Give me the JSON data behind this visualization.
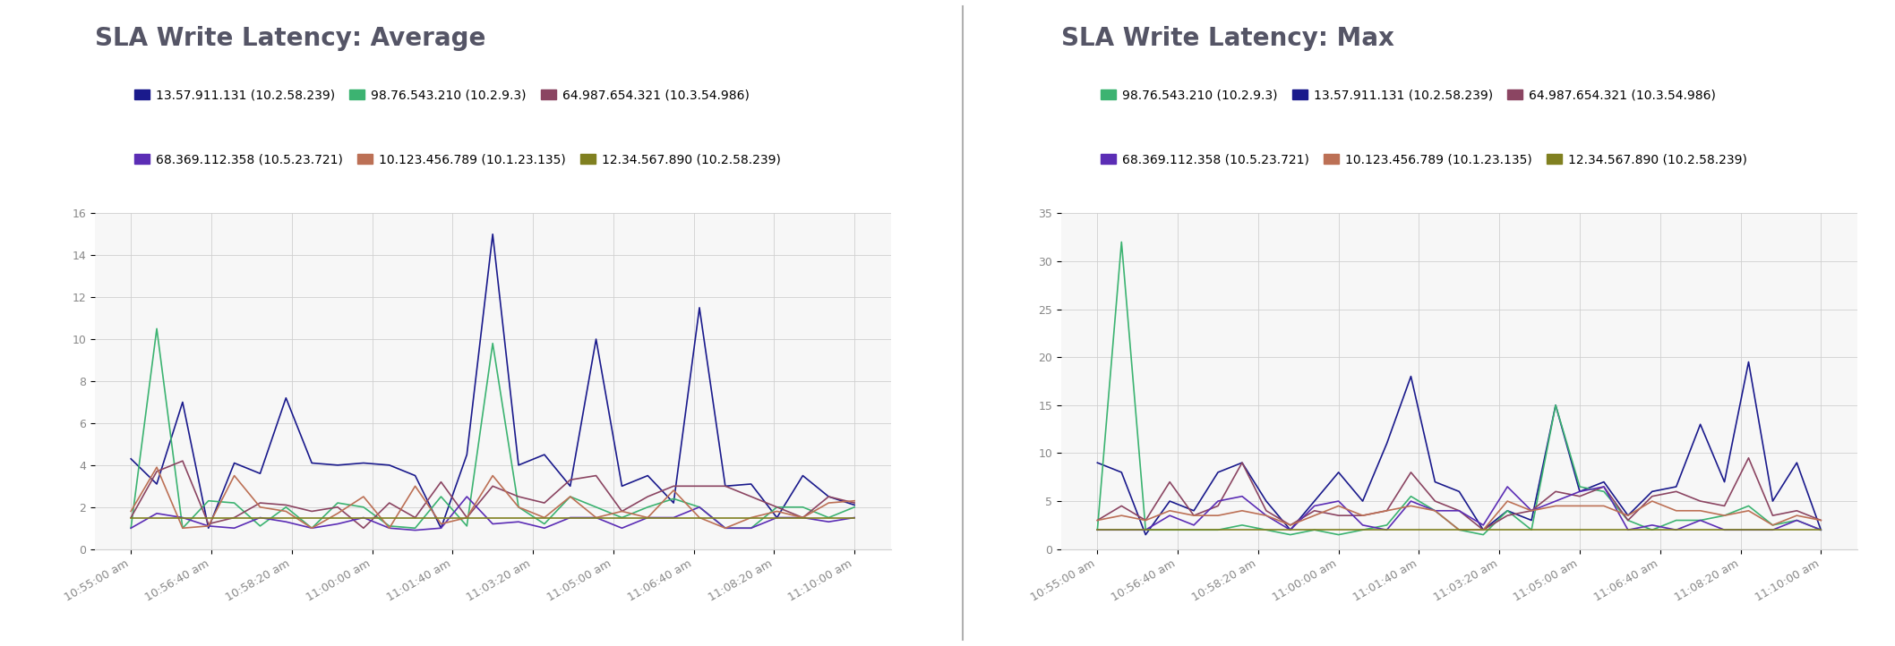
{
  "chart1_title": "SLA Write Latency: Average",
  "chart2_title": "SLA Write Latency: Max",
  "x_labels": [
    "10:55:00 am",
    "10:56:40 am",
    "10:58:20 am",
    "11:00:00 am",
    "11:01:40 am",
    "11:03:20 am",
    "11:05:00 am",
    "11:06:40 am",
    "11:08:20 am",
    "11:10:00 am"
  ],
  "chart1_ylim": [
    0,
    16
  ],
  "chart1_yticks": [
    0,
    2,
    4,
    6,
    8,
    10,
    12,
    14,
    16
  ],
  "chart2_ylim": [
    0,
    35
  ],
  "chart2_yticks": [
    0,
    5,
    10,
    15,
    20,
    25,
    30,
    35
  ],
  "series": [
    {
      "label": "13.57.911.131 (10.2.58.239)",
      "color": "#1a1a8c",
      "avg": [
        4.3,
        3.1,
        7.0,
        1.0,
        4.1,
        3.6,
        7.2,
        4.1,
        4.0,
        4.1,
        4.0,
        3.5,
        1.0,
        4.5,
        15.0,
        4.0,
        4.5,
        3.0,
        10.0,
        3.0,
        3.5,
        2.2,
        11.5,
        3.0,
        3.1,
        1.5,
        3.5,
        2.5,
        2.1
      ],
      "max": [
        9.0,
        8.0,
        1.5,
        5.0,
        4.0,
        8.0,
        9.0,
        5.0,
        2.0,
        5.0,
        8.0,
        5.0,
        11.0,
        18.0,
        7.0,
        6.0,
        2.0,
        4.0,
        3.0,
        15.0,
        6.0,
        7.0,
        3.5,
        6.0,
        6.5,
        13.0,
        7.0,
        19.5,
        5.0,
        9.0,
        2.0
      ]
    },
    {
      "label": "98.76.543.210 (10.2.9.3)",
      "color": "#3cb371",
      "avg": [
        1.0,
        10.5,
        1.0,
        2.3,
        2.2,
        1.1,
        2.0,
        1.0,
        2.2,
        2.0,
        1.1,
        1.0,
        2.5,
        1.1,
        9.8,
        2.0,
        1.2,
        2.5,
        2.0,
        1.5,
        2.0,
        2.4,
        2.0,
        1.0,
        1.0,
        2.0,
        2.0,
        1.5,
        2.0
      ],
      "max": [
        2.0,
        32.0,
        2.0,
        2.0,
        2.0,
        2.0,
        2.5,
        2.0,
        1.5,
        2.0,
        1.5,
        2.0,
        2.5,
        5.5,
        4.0,
        2.0,
        1.5,
        4.0,
        2.0,
        15.0,
        6.5,
        6.0,
        3.0,
        2.0,
        3.0,
        3.0,
        3.5,
        4.5,
        2.5,
        3.0,
        2.0
      ]
    },
    {
      "label": "64.987.654.321 (10.3.54.986)",
      "color": "#8b4562",
      "avg": [
        1.5,
        3.7,
        4.2,
        1.2,
        1.5,
        2.2,
        2.1,
        1.8,
        2.0,
        1.0,
        2.2,
        1.5,
        3.2,
        1.5,
        3.0,
        2.5,
        2.2,
        3.3,
        3.5,
        1.8,
        2.5,
        3.0,
        3.0,
        3.0,
        2.5,
        2.0,
        1.5,
        2.5,
        2.2
      ],
      "max": [
        3.0,
        4.5,
        3.0,
        7.0,
        3.5,
        4.5,
        9.0,
        4.0,
        2.5,
        4.0,
        3.5,
        3.5,
        4.0,
        8.0,
        5.0,
        4.0,
        2.0,
        3.5,
        4.0,
        6.0,
        5.5,
        6.5,
        3.0,
        5.5,
        6.0,
        5.0,
        4.5,
        9.5,
        3.5,
        4.0,
        3.0
      ]
    },
    {
      "label": "68.369.112.358 (10.5.23.721)",
      "color": "#5b2db5",
      "avg": [
        1.0,
        1.7,
        1.5,
        1.1,
        1.0,
        1.5,
        1.3,
        1.0,
        1.2,
        1.5,
        1.0,
        0.9,
        1.0,
        2.5,
        1.2,
        1.3,
        1.0,
        1.5,
        1.5,
        1.0,
        1.5,
        1.5,
        2.0,
        1.0,
        1.0,
        1.5,
        1.5,
        1.3,
        1.5
      ],
      "max": [
        2.0,
        2.0,
        2.0,
        3.5,
        2.5,
        5.0,
        5.5,
        3.5,
        2.0,
        4.5,
        5.0,
        2.5,
        2.0,
        5.0,
        4.0,
        4.0,
        2.5,
        6.5,
        4.0,
        5.0,
        6.0,
        6.5,
        2.0,
        2.5,
        2.0,
        3.0,
        2.0,
        2.0,
        2.0,
        3.0,
        2.0
      ]
    },
    {
      "label": "10.123.456.789 (10.1.23.135)",
      "color": "#bc7055",
      "avg": [
        1.8,
        3.9,
        1.0,
        1.1,
        3.5,
        2.0,
        1.8,
        1.0,
        1.7,
        2.5,
        1.0,
        3.0,
        1.2,
        1.5,
        3.5,
        2.0,
        1.5,
        2.5,
        1.5,
        1.8,
        1.5,
        2.8,
        1.5,
        1.0,
        1.5,
        1.8,
        1.5,
        2.2,
        2.3
      ],
      "max": [
        3.0,
        3.5,
        3.0,
        4.0,
        3.5,
        3.5,
        4.0,
        3.5,
        2.5,
        3.5,
        4.5,
        3.5,
        4.0,
        4.5,
        4.0,
        2.0,
        2.0,
        5.0,
        4.0,
        4.5,
        4.5,
        4.5,
        3.5,
        5.0,
        4.0,
        4.0,
        3.5,
        4.0,
        2.5,
        3.5,
        3.0
      ]
    },
    {
      "label": "12.34.567.890 (10.2.58.239)",
      "color": "#808020",
      "avg": [
        1.5,
        1.5,
        1.5,
        1.5,
        1.5,
        1.5,
        1.5,
        1.5,
        1.5,
        1.5,
        1.5,
        1.5,
        1.5,
        1.5,
        1.5,
        1.5,
        1.5,
        1.5,
        1.5,
        1.5,
        1.5,
        1.5,
        1.5,
        1.5,
        1.5,
        1.5,
        1.5,
        1.5,
        1.5
      ],
      "max": [
        2.0,
        2.0,
        2.0,
        2.0,
        2.0,
        2.0,
        2.0,
        2.0,
        2.0,
        2.0,
        2.0,
        2.0,
        2.0,
        2.0,
        2.0,
        2.0,
        2.0,
        2.0,
        2.0,
        2.0,
        2.0,
        2.0,
        2.0,
        2.0,
        2.0,
        2.0,
        2.0,
        2.0,
        2.0,
        2.0,
        2.0
      ]
    }
  ],
  "legend_order_avg": [
    0,
    1,
    2,
    3,
    4,
    5
  ],
  "legend_order_max": [
    1,
    0,
    2,
    3,
    4,
    5
  ],
  "background_color": "#ffffff",
  "plot_bg_color": "#f7f7f7",
  "grid_color": "#d0d0d0",
  "title_fontsize": 20,
  "title_color": "#555566",
  "tick_fontsize": 9,
  "legend_fontsize": 10
}
